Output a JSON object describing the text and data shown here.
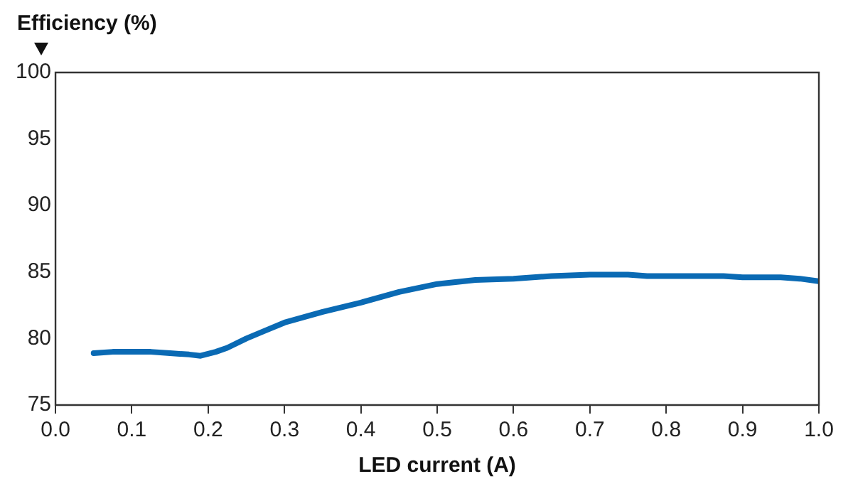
{
  "chart_data": {
    "type": "line",
    "xlabel": "LED current (A)",
    "ylabel": "Efficiency (%)",
    "x": [
      0.05,
      0.075,
      0.1,
      0.125,
      0.15,
      0.175,
      0.19,
      0.21,
      0.225,
      0.25,
      0.275,
      0.3,
      0.35,
      0.4,
      0.45,
      0.5,
      0.55,
      0.6,
      0.65,
      0.7,
      0.75,
      0.775,
      0.8,
      0.85,
      0.875,
      0.9,
      0.95,
      0.975,
      1.0
    ],
    "series": [
      {
        "color": "#0a6ab4",
        "values": [
          78.9,
          79.0,
          79.0,
          79.0,
          78.9,
          78.8,
          78.7,
          79.0,
          79.3,
          80.0,
          80.6,
          81.2,
          82.0,
          82.7,
          83.5,
          84.1,
          84.4,
          84.5,
          84.7,
          84.8,
          84.8,
          84.7,
          84.7,
          84.7,
          84.7,
          84.6,
          84.6,
          84.5,
          84.3
        ]
      }
    ],
    "xlim": [
      0,
      1
    ],
    "xticks": [
      {
        "value": 0,
        "label": "0.0"
      },
      0.1,
      0.2,
      0.3,
      0.4,
      0.5,
      0.6,
      0.7,
      0.8,
      0.9,
      {
        "value": 1,
        "label": "1.0"
      }
    ],
    "ylim": [
      75,
      100
    ],
    "yticks": [
      75,
      80,
      85,
      90,
      95,
      100
    ],
    "grid": false,
    "legend": false,
    "marker": "none",
    "line_style": "solid"
  }
}
